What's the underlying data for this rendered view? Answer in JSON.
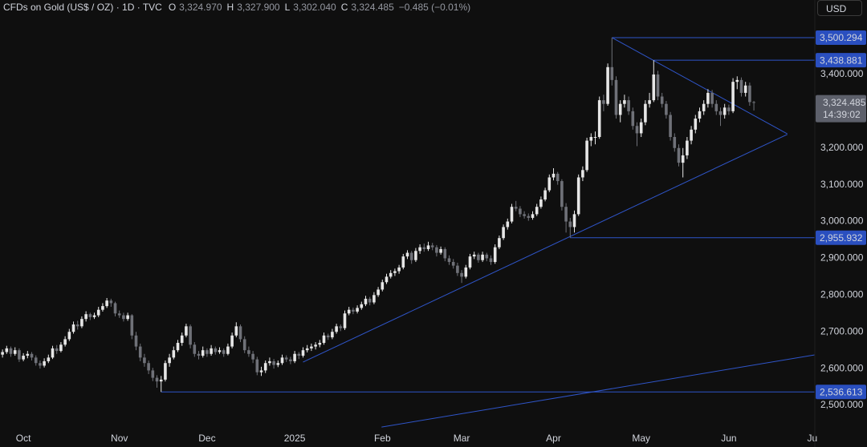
{
  "chart_data": {
    "type": "candlestick",
    "title": "CFDs on Gold (US$ / OZ) · 1D · TVC",
    "header": [
      {
        "key": "O",
        "value": "3,324.970"
      },
      {
        "key": "H",
        "value": "3,327.900"
      },
      {
        "key": "L",
        "value": "3,302.040"
      },
      {
        "key": "C",
        "value": "3,324.485"
      }
    ],
    "change": "−0.485 (−0.01%)",
    "currency": "USD",
    "up_color": "#e6e6e6",
    "down_color": "#6f7178",
    "line_color": "#2f55c9",
    "tag_color": "#2a4fbf",
    "last_tag_color": "#5d606b",
    "xlim": [
      -0.6,
      194.6
    ],
    "ylim": [
      2430.3,
      3602.6
    ],
    "grid": false,
    "xticks": [
      {
        "value": 5,
        "label": "Oct"
      },
      {
        "value": 28,
        "label": "Nov"
      },
      {
        "value": 49,
        "label": "Dec"
      },
      {
        "value": 70,
        "label": "2025"
      },
      {
        "value": 91,
        "label": "Feb"
      },
      {
        "value": 110,
        "label": "Mar"
      },
      {
        "value": 132,
        "label": "Apr"
      },
      {
        "value": 153,
        "label": "May"
      },
      {
        "value": 174,
        "label": "Jun"
      },
      {
        "value": 194,
        "label": "Ju"
      }
    ],
    "yticks": [
      {
        "value": 2500,
        "label": "2,500.000"
      },
      {
        "value": 2600,
        "label": "2,600.000"
      },
      {
        "value": 2700,
        "label": "2,700.000"
      },
      {
        "value": 2800,
        "label": "2,800.000"
      },
      {
        "value": 2900,
        "label": "2,900.000"
      },
      {
        "value": 3000,
        "label": "3,000.000"
      },
      {
        "value": 3100,
        "label": "3,100.000"
      },
      {
        "value": 3200,
        "label": "3,200.000"
      },
      {
        "value": 3400,
        "label": "3,400.000"
      }
    ],
    "levels": [
      {
        "value": 3500.294,
        "label": "3,500.294",
        "from": 146
      },
      {
        "value": 3438.881,
        "label": "3,438.881",
        "from": 156
      },
      {
        "value": 2955.932,
        "label": "2,955.932",
        "from": 136
      },
      {
        "value": 2536.613,
        "label": "2,536.613",
        "from": 38
      }
    ],
    "trendlines": [
      [
        [
          146,
          3500.294
        ],
        [
          188,
          3238.7
        ]
      ],
      [
        [
          72,
          2617.7
        ],
        [
          188,
          3237
        ]
      ],
      [
        [
          90.8,
          2441
        ],
        [
          194.6,
          2637.3
        ]
      ]
    ],
    "last_price": {
      "value": 3324.485,
      "label": "3,324.485",
      "countdown": "14:39:02"
    },
    "ohlc": [
      [
        2638,
        2652,
        2630,
        2645
      ],
      [
        2645,
        2662,
        2640,
        2655
      ],
      [
        2655,
        2660,
        2632,
        2640
      ],
      [
        2640,
        2658,
        2635,
        2650
      ],
      [
        2650,
        2655,
        2618,
        2625
      ],
      [
        2625,
        2642,
        2620,
        2635
      ],
      [
        2635,
        2648,
        2628,
        2640
      ],
      [
        2640,
        2645,
        2622,
        2630
      ],
      [
        2630,
        2636,
        2608,
        2615
      ],
      [
        2615,
        2622,
        2600,
        2608
      ],
      [
        2608,
        2628,
        2603,
        2620
      ],
      [
        2620,
        2638,
        2615,
        2630
      ],
      [
        2630,
        2662,
        2626,
        2655
      ],
      [
        2655,
        2664,
        2640,
        2648
      ],
      [
        2648,
        2672,
        2644,
        2665
      ],
      [
        2665,
        2688,
        2660,
        2680
      ],
      [
        2680,
        2708,
        2675,
        2700
      ],
      [
        2700,
        2728,
        2695,
        2720
      ],
      [
        2720,
        2730,
        2706,
        2715
      ],
      [
        2715,
        2742,
        2710,
        2735
      ],
      [
        2735,
        2756,
        2728,
        2748
      ],
      [
        2748,
        2752,
        2732,
        2740
      ],
      [
        2740,
        2752,
        2735,
        2745
      ],
      [
        2745,
        2768,
        2740,
        2760
      ],
      [
        2760,
        2778,
        2755,
        2770
      ],
      [
        2770,
        2792,
        2765,
        2785
      ],
      [
        2785,
        2790,
        2768,
        2778
      ],
      [
        2778,
        2782,
        2742,
        2750
      ],
      [
        2750,
        2758,
        2738,
        2745
      ],
      [
        2745,
        2752,
        2728,
        2735
      ],
      [
        2735,
        2752,
        2730,
        2745
      ],
      [
        2745,
        2748,
        2680,
        2690
      ],
      [
        2690,
        2700,
        2650,
        2660
      ],
      [
        2660,
        2668,
        2620,
        2630
      ],
      [
        2630,
        2640,
        2605,
        2615
      ],
      [
        2615,
        2622,
        2585,
        2595
      ],
      [
        2595,
        2602,
        2566,
        2575
      ],
      [
        2575,
        2582,
        2548,
        2565
      ],
      [
        2565,
        2580,
        2536.613,
        2570
      ],
      [
        2570,
        2622,
        2565,
        2615
      ],
      [
        2615,
        2640,
        2605,
        2630
      ],
      [
        2630,
        2660,
        2625,
        2650
      ],
      [
        2650,
        2678,
        2645,
        2670
      ],
      [
        2670,
        2698,
        2662,
        2690
      ],
      [
        2690,
        2722,
        2685,
        2715
      ],
      [
        2715,
        2720,
        2655,
        2665
      ],
      [
        2665,
        2672,
        2632,
        2640
      ],
      [
        2640,
        2648,
        2625,
        2635
      ],
      [
        2635,
        2660,
        2630,
        2650
      ],
      [
        2650,
        2655,
        2632,
        2640
      ],
      [
        2640,
        2664,
        2635,
        2655
      ],
      [
        2655,
        2660,
        2638,
        2645
      ],
      [
        2645,
        2658,
        2640,
        2650
      ],
      [
        2650,
        2655,
        2632,
        2640
      ],
      [
        2640,
        2668,
        2636,
        2660
      ],
      [
        2660,
        2698,
        2655,
        2690
      ],
      [
        2690,
        2726,
        2685,
        2715
      ],
      [
        2715,
        2720,
        2672,
        2680
      ],
      [
        2680,
        2688,
        2642,
        2650
      ],
      [
        2650,
        2660,
        2632,
        2640
      ],
      [
        2640,
        2648,
        2615,
        2625
      ],
      [
        2625,
        2632,
        2582,
        2590
      ],
      [
        2590,
        2605,
        2580,
        2595
      ],
      [
        2595,
        2622,
        2588,
        2615
      ],
      [
        2615,
        2630,
        2608,
        2620
      ],
      [
        2620,
        2626,
        2600,
        2610
      ],
      [
        2610,
        2622,
        2604,
        2615
      ],
      [
        2615,
        2638,
        2610,
        2630
      ],
      [
        2630,
        2636,
        2618,
        2625
      ],
      [
        2625,
        2632,
        2612,
        2620
      ],
      [
        2620,
        2648,
        2615,
        2640
      ],
      [
        2640,
        2645,
        2626,
        2635
      ],
      [
        2635,
        2658,
        2630,
        2650
      ],
      [
        2650,
        2664,
        2644,
        2655
      ],
      [
        2655,
        2668,
        2648,
        2660
      ],
      [
        2660,
        2672,
        2652,
        2665
      ],
      [
        2665,
        2678,
        2658,
        2670
      ],
      [
        2670,
        2698,
        2665,
        2690
      ],
      [
        2690,
        2695,
        2678,
        2685
      ],
      [
        2685,
        2708,
        2680,
        2700
      ],
      [
        2700,
        2722,
        2695,
        2715
      ],
      [
        2715,
        2720,
        2702,
        2710
      ],
      [
        2710,
        2758,
        2705,
        2750
      ],
      [
        2750,
        2768,
        2745,
        2760
      ],
      [
        2760,
        2766,
        2748,
        2755
      ],
      [
        2755,
        2772,
        2750,
        2765
      ],
      [
        2765,
        2782,
        2760,
        2775
      ],
      [
        2775,
        2798,
        2770,
        2790
      ],
      [
        2790,
        2795,
        2772,
        2780
      ],
      [
        2780,
        2808,
        2775,
        2800
      ],
      [
        2800,
        2822,
        2795,
        2815
      ],
      [
        2815,
        2842,
        2810,
        2835
      ],
      [
        2835,
        2858,
        2830,
        2850
      ],
      [
        2850,
        2868,
        2845,
        2860
      ],
      [
        2860,
        2872,
        2852,
        2865
      ],
      [
        2865,
        2882,
        2858,
        2875
      ],
      [
        2875,
        2912,
        2870,
        2905
      ],
      [
        2905,
        2922,
        2898,
        2915
      ],
      [
        2915,
        2920,
        2885,
        2895
      ],
      [
        2895,
        2928,
        2890,
        2920
      ],
      [
        2920,
        2938,
        2912,
        2930
      ],
      [
        2930,
        2940,
        2918,
        2925
      ],
      [
        2925,
        2945,
        2920,
        2935
      ],
      [
        2935,
        2942,
        2922,
        2930
      ],
      [
        2930,
        2936,
        2905,
        2915
      ],
      [
        2915,
        2932,
        2910,
        2925
      ],
      [
        2925,
        2930,
        2892,
        2900
      ],
      [
        2900,
        2908,
        2882,
        2890
      ],
      [
        2890,
        2898,
        2872,
        2880
      ],
      [
        2880,
        2888,
        2852,
        2860
      ],
      [
        2860,
        2868,
        2833,
        2850
      ],
      [
        2850,
        2882,
        2845,
        2875
      ],
      [
        2875,
        2912,
        2870,
        2905
      ],
      [
        2905,
        2918,
        2898,
        2910
      ],
      [
        2910,
        2915,
        2888,
        2895
      ],
      [
        2895,
        2918,
        2890,
        2910
      ],
      [
        2910,
        2915,
        2892,
        2900
      ],
      [
        2900,
        2908,
        2882,
        2890
      ],
      [
        2890,
        2938,
        2885,
        2930
      ],
      [
        2930,
        2962,
        2925,
        2955
      ],
      [
        2955,
        2992,
        2950,
        2985
      ],
      [
        2985,
        3008,
        2978,
        3000
      ],
      [
        3000,
        3048,
        2995,
        3040
      ],
      [
        3040,
        3056,
        3028,
        3035
      ],
      [
        3035,
        3042,
        3012,
        3020
      ],
      [
        3020,
        3028,
        3008,
        3015
      ],
      [
        3015,
        3022,
        3002,
        3010
      ],
      [
        3010,
        3028,
        3005,
        3020
      ],
      [
        3020,
        3048,
        3015,
        3040
      ],
      [
        3040,
        3068,
        3035,
        3060
      ],
      [
        3060,
        3092,
        3055,
        3085
      ],
      [
        3085,
        3128,
        3080,
        3120
      ],
      [
        3120,
        3145,
        3112,
        3130
      ],
      [
        3130,
        3135,
        3100,
        3110
      ],
      [
        3110,
        3115,
        3030,
        3040
      ],
      [
        3040,
        3050,
        2970,
        3000
      ],
      [
        3000,
        3010,
        2955.932,
        2985
      ],
      [
        2985,
        3030,
        2970,
        3020
      ],
      [
        3020,
        3128,
        3015,
        3120
      ],
      [
        3120,
        3150,
        3110,
        3140
      ],
      [
        3140,
        3228,
        3135,
        3220
      ],
      [
        3220,
        3240,
        3205,
        3230
      ],
      [
        3230,
        3245,
        3210,
        3230
      ],
      [
        3230,
        3340,
        3225,
        3330
      ],
      [
        3330,
        3345,
        3300,
        3320
      ],
      [
        3320,
        3430,
        3315,
        3420
      ],
      [
        3420,
        3500.294,
        3370,
        3385
      ],
      [
        3385,
        3395,
        3280,
        3290
      ],
      [
        3290,
        3330,
        3270,
        3320
      ],
      [
        3320,
        3345,
        3310,
        3330
      ],
      [
        3330,
        3340,
        3290,
        3300
      ],
      [
        3300,
        3310,
        3250,
        3260
      ],
      [
        3260,
        3270,
        3205,
        3240
      ],
      [
        3240,
        3280,
        3230,
        3270
      ],
      [
        3270,
        3330,
        3262,
        3320
      ],
      [
        3320,
        3350,
        3310,
        3330
      ],
      [
        3330,
        3438.881,
        3325,
        3400
      ],
      [
        3400,
        3410,
        3330,
        3340
      ],
      [
        3340,
        3350,
        3310,
        3320
      ],
      [
        3320,
        3328,
        3280,
        3290
      ],
      [
        3290,
        3298,
        3220,
        3230
      ],
      [
        3230,
        3240,
        3190,
        3200
      ],
      [
        3200,
        3210,
        3150,
        3160
      ],
      [
        3160,
        3200,
        3120,
        3180
      ],
      [
        3180,
        3230,
        3170,
        3220
      ],
      [
        3220,
        3260,
        3210,
        3250
      ],
      [
        3250,
        3290,
        3240,
        3280
      ],
      [
        3280,
        3310,
        3270,
        3300
      ],
      [
        3300,
        3330,
        3290,
        3320
      ],
      [
        3320,
        3360,
        3310,
        3350
      ],
      [
        3350,
        3358,
        3310,
        3320
      ],
      [
        3320,
        3330,
        3290,
        3300
      ],
      [
        3300,
        3310,
        3260,
        3290
      ],
      [
        3290,
        3320,
        3280,
        3310
      ],
      [
        3310,
        3318,
        3290,
        3300
      ],
      [
        3300,
        3390,
        3295,
        3380
      ],
      [
        3380,
        3395,
        3360,
        3385
      ],
      [
        3385,
        3392,
        3340,
        3350
      ],
      [
        3350,
        3380,
        3340,
        3370
      ],
      [
        3370,
        3378,
        3315,
        3325
      ],
      [
        3324.97,
        3327.9,
        3302.04,
        3324.485
      ]
    ]
  }
}
